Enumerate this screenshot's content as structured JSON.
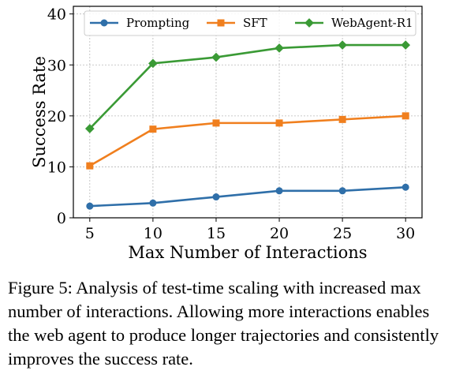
{
  "chart_data": {
    "type": "line",
    "x": [
      5,
      10,
      15,
      20,
      25,
      30
    ],
    "series": [
      {
        "name": "Prompting",
        "values": [
          2.3,
          2.9,
          4.1,
          5.3,
          5.3,
          6.0
        ],
        "color": "#2f6fa9",
        "marker": "circle"
      },
      {
        "name": "SFT",
        "values": [
          10.2,
          17.4,
          18.6,
          18.6,
          19.3,
          20.0
        ],
        "color": "#f07f1e",
        "marker": "square"
      },
      {
        "name": "WebAgent-R1",
        "values": [
          17.5,
          30.3,
          31.5,
          33.3,
          33.9,
          33.9
        ],
        "color": "#3a9a35",
        "marker": "diamond"
      }
    ],
    "xlabel": "Max Number of Interactions",
    "ylabel": "Success Rate",
    "xticks": [
      "5",
      "10",
      "15",
      "20",
      "25",
      "30"
    ],
    "yticks": [
      "0",
      "10",
      "20",
      "30",
      "40"
    ],
    "xlim": [
      3.7,
      31.3
    ],
    "ylim": [
      0,
      41.5
    ],
    "grid": true,
    "legend_position": "top"
  },
  "caption": "Figure 5: Analysis of test-time scaling with increased max number of interactions. Allowing more interactions enables the web agent to produce longer trajectories and consistently improves the success rate."
}
